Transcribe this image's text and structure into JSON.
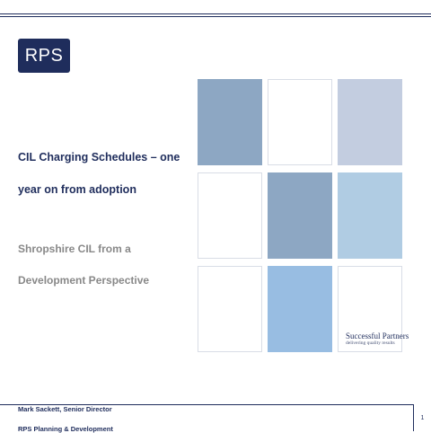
{
  "logo": {
    "text": "RPS",
    "bg_color": "#1f2d5c"
  },
  "title": {
    "line1": "CIL Charging Schedules – one",
    "line2": "year on from adoption"
  },
  "subtitle": {
    "line1": "Shropshire CIL from a",
    "line2": "Development Perspective"
  },
  "tiles": {
    "colors": {
      "steel_blue": "#8da7c3",
      "pale_lavender": "#c3cde0",
      "light_sky": "#b0cce3",
      "sky_blue": "#98bde2",
      "white": "#ffffff"
    }
  },
  "partner": {
    "name": "Successful Partners",
    "tagline": "delivering quality results"
  },
  "footer": {
    "presenter": "Mark Sackett, Senior Director",
    "organisation": "RPS Planning & Development",
    "page_number": "1"
  }
}
